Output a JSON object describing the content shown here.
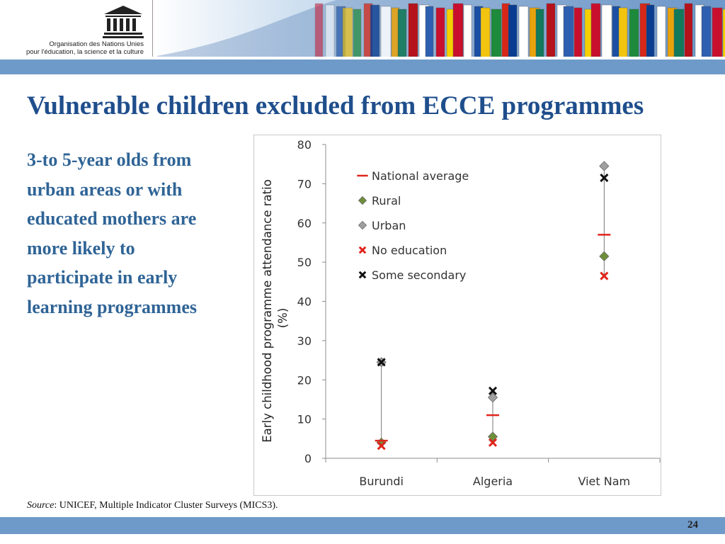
{
  "header": {
    "logo_word": "UNESCO",
    "org_line1": "Organisation des Nations Unies",
    "org_line2": "pour l'éducation, la science et la culture"
  },
  "slide": {
    "title": "Vulnerable children excluded from ECCE programmes",
    "body": "3-to 5-year olds from urban areas or with educated mothers are more likely to participate in early learning programmes",
    "source_label": "Source",
    "source_text": ": UNICEF, Multiple Indicator Cluster Surveys (MICS3).",
    "page_number": "24"
  },
  "colors": {
    "title": "#1f4e8c",
    "body_text": "#2f6496",
    "band": "#6e9ac9",
    "national_average": "#e0251b",
    "rural": "#6e8f3a",
    "urban": "#a0a0a0",
    "no_education": "#e0251b",
    "some_secondary": "#111111"
  },
  "chart_data": {
    "type": "scatter",
    "categories": [
      "Burundi",
      "Algeria",
      "Viet Nam"
    ],
    "ylabel_line1": "Early childhood  programme  attendance ratio",
    "ylabel_line2": "(%)",
    "ylim": [
      0,
      80
    ],
    "yticks": [
      0,
      10,
      20,
      30,
      40,
      50,
      60,
      70,
      80
    ],
    "grid": false,
    "legend_position": "top-left",
    "series": [
      {
        "name": "National average",
        "marker": "dash",
        "values": [
          4.5,
          11,
          57
        ]
      },
      {
        "name": "Rural",
        "marker": "diamond",
        "values": [
          4,
          5.5,
          51.5
        ]
      },
      {
        "name": "Urban",
        "marker": "diamond",
        "values": [
          24.5,
          15.5,
          74.5
        ]
      },
      {
        "name": "No education",
        "marker": "x",
        "values": [
          3.2,
          4,
          46.5
        ]
      },
      {
        "name": "Some secondary",
        "marker": "x",
        "values": [
          24.5,
          17.2,
          71.5
        ]
      }
    ],
    "range_lines": [
      {
        "low": 3.2,
        "high": 24.5
      },
      {
        "low": 4,
        "high": 17.2
      },
      {
        "low": 46.5,
        "high": 74.5
      }
    ]
  }
}
